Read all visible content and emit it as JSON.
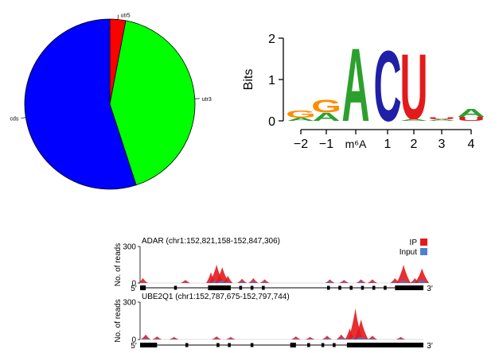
{
  "chart_data": [
    {
      "type": "pie",
      "slices": [
        {
          "label": "utr5",
          "value": 3,
          "color": "#ff0000"
        },
        {
          "label": "utr3",
          "value": 42,
          "color": "#00ff00"
        },
        {
          "label": "cds",
          "value": 55,
          "color": "#0000ff"
        }
      ]
    },
    {
      "type": "sequence-logo",
      "ylabel": "Bits",
      "ylim": [
        0,
        2
      ],
      "yticks": [
        "0",
        "1",
        "2"
      ],
      "xticks": [
        "−2",
        "−1",
        "m⁶A",
        "1",
        "2",
        "3",
        "4"
      ],
      "colors": {
        "A": "#2ca02c",
        "C": "#1f1fa8",
        "G": "#ff8c00",
        "U": "#e31a1c"
      },
      "positions": [
        {
          "pos": "−2",
          "letters": [
            {
              "l": "A",
              "h": 0.08
            },
            {
              "l": "G",
              "h": 0.18
            }
          ]
        },
        {
          "pos": "−1",
          "letters": [
            {
              "l": "A",
              "h": 0.2
            },
            {
              "l": "G",
              "h": 0.32
            }
          ]
        },
        {
          "pos": "m⁶A",
          "letters": [
            {
              "l": "A",
              "h": 1.82
            }
          ]
        },
        {
          "pos": "1",
          "letters": [
            {
              "l": "C",
              "h": 1.75
            }
          ]
        },
        {
          "pos": "2",
          "letters": [
            {
              "l": "U",
              "h": 1.62
            },
            {
              "l": "A",
              "h": 0.05
            }
          ]
        },
        {
          "pos": "3",
          "letters": [
            {
              "l": "U",
              "h": 0.05
            },
            {
              "l": "A",
              "h": 0.04
            }
          ]
        },
        {
          "pos": "4",
          "letters": [
            {
              "l": "U",
              "h": 0.1
            },
            {
              "l": "A",
              "h": 0.2
            }
          ]
        }
      ]
    },
    {
      "type": "area",
      "tracks": [
        {
          "title": "ADAR (chr1:152,821,158-152,847,306)",
          "ylabel": "No. of reads",
          "ylim": [
            0,
            300
          ],
          "yticks": [
            "0",
            "300"
          ],
          "strand": {
            "left": "5′",
            "right": "3′"
          },
          "legend": [
            {
              "name": "IP",
              "color": "#e31a1c"
            },
            {
              "name": "Input",
              "color": "#4f7fd0"
            }
          ],
          "peaks": [
            {
              "x": 0.01,
              "ip": 40,
              "input": 10
            },
            {
              "x": 0.16,
              "ip": 25,
              "input": 8
            },
            {
              "x": 0.25,
              "ip": 90,
              "input": 20
            },
            {
              "x": 0.27,
              "ip": 150,
              "input": 30
            },
            {
              "x": 0.29,
              "ip": 130,
              "input": 25
            },
            {
              "x": 0.31,
              "ip": 60,
              "input": 15
            },
            {
              "x": 0.36,
              "ip": 35,
              "input": 20
            },
            {
              "x": 0.4,
              "ip": 40,
              "input": 20
            },
            {
              "x": 0.44,
              "ip": 30,
              "input": 15
            },
            {
              "x": 0.67,
              "ip": 30,
              "input": 20
            },
            {
              "x": 0.72,
              "ip": 25,
              "input": 15
            },
            {
              "x": 0.78,
              "ip": 30,
              "input": 20
            },
            {
              "x": 0.82,
              "ip": 30,
              "input": 15
            },
            {
              "x": 0.9,
              "ip": 40,
              "input": 15
            },
            {
              "x": 0.93,
              "ip": 150,
              "input": 25
            },
            {
              "x": 0.97,
              "ip": 40,
              "input": 20
            },
            {
              "x": 0.995,
              "ip": 120,
              "input": 30
            }
          ],
          "exons": [
            {
              "start": 0.0,
              "end": 0.02,
              "thick": true
            },
            {
              "start": 0.12,
              "end": 0.13,
              "thick": false
            },
            {
              "start": 0.24,
              "end": 0.32,
              "thick": true
            },
            {
              "start": 0.35,
              "end": 0.36,
              "thick": false
            },
            {
              "start": 0.39,
              "end": 0.4,
              "thick": false
            },
            {
              "start": 0.43,
              "end": 0.44,
              "thick": false
            },
            {
              "start": 0.66,
              "end": 0.67,
              "thick": false
            },
            {
              "start": 0.7,
              "end": 0.71,
              "thick": false
            },
            {
              "start": 0.74,
              "end": 0.75,
              "thick": false
            },
            {
              "start": 0.78,
              "end": 0.79,
              "thick": false
            },
            {
              "start": 0.82,
              "end": 0.83,
              "thick": false
            },
            {
              "start": 0.86,
              "end": 0.87,
              "thick": false
            },
            {
              "start": 0.9,
              "end": 1.0,
              "thick": true
            }
          ]
        },
        {
          "title": "UBE2Q1 (chr1:152,787,675-152,797,744)",
          "ylabel": "No. of reads",
          "ylim": [
            0,
            300
          ],
          "yticks": [
            "0",
            "300"
          ],
          "strand": {
            "left": "5′",
            "right": "3′"
          },
          "peaks": [
            {
              "x": 0.02,
              "ip": 40,
              "input": 15
            },
            {
              "x": 0.06,
              "ip": 25,
              "input": 10
            },
            {
              "x": 0.12,
              "ip": 20,
              "input": 10
            },
            {
              "x": 0.27,
              "ip": 25,
              "input": 10
            },
            {
              "x": 0.32,
              "ip": 20,
              "input": 10
            },
            {
              "x": 0.55,
              "ip": 25,
              "input": 10
            },
            {
              "x": 0.6,
              "ip": 20,
              "input": 10
            },
            {
              "x": 0.66,
              "ip": 30,
              "input": 15
            },
            {
              "x": 0.71,
              "ip": 40,
              "input": 20
            },
            {
              "x": 0.74,
              "ip": 90,
              "input": 20
            },
            {
              "x": 0.76,
              "ip": 250,
              "input": 30
            },
            {
              "x": 0.78,
              "ip": 160,
              "input": 25
            },
            {
              "x": 0.82,
              "ip": 30,
              "input": 15
            },
            {
              "x": 0.92,
              "ip": 20,
              "input": 10
            }
          ],
          "exons": [
            {
              "start": 0.0,
              "end": 0.06,
              "thick": true
            },
            {
              "start": 0.16,
              "end": 0.17,
              "thick": false
            },
            {
              "start": 0.27,
              "end": 0.28,
              "thick": false
            },
            {
              "start": 0.31,
              "end": 0.32,
              "thick": false
            },
            {
              "start": 0.39,
              "end": 0.4,
              "thick": false
            },
            {
              "start": 0.53,
              "end": 0.55,
              "thick": true
            },
            {
              "start": 0.59,
              "end": 0.6,
              "thick": false
            },
            {
              "start": 0.64,
              "end": 0.65,
              "thick": false
            },
            {
              "start": 0.68,
              "end": 0.69,
              "thick": false
            },
            {
              "start": 0.73,
              "end": 1.0,
              "thick": true
            }
          ]
        }
      ]
    }
  ]
}
